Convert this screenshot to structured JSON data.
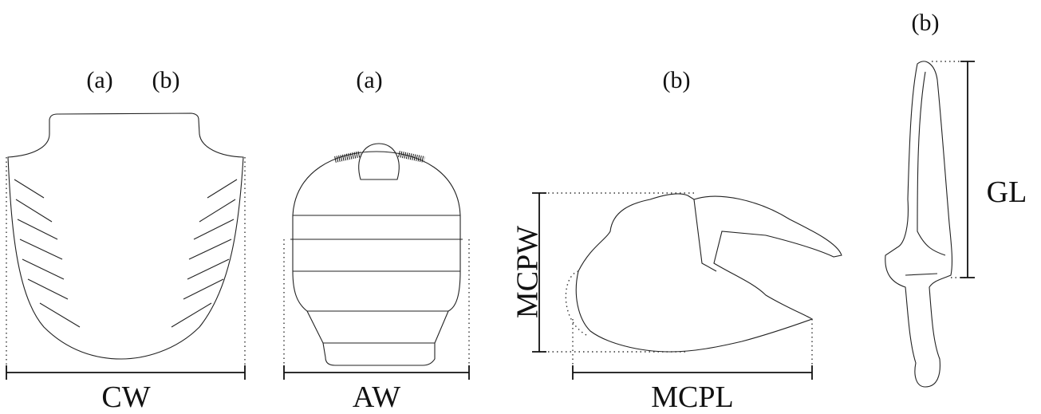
{
  "panels": [
    {
      "labels": [
        "(a)",
        "(b)"
      ],
      "measurements": [
        "CW"
      ]
    },
    {
      "labels": [
        "(a)"
      ],
      "measurements": [
        "AW"
      ]
    },
    {
      "labels": [
        "(b)"
      ],
      "measurements": [
        "MCPW",
        "MCPL"
      ]
    },
    {
      "labels": [
        "(b)"
      ],
      "measurements": [
        "GL"
      ]
    }
  ]
}
